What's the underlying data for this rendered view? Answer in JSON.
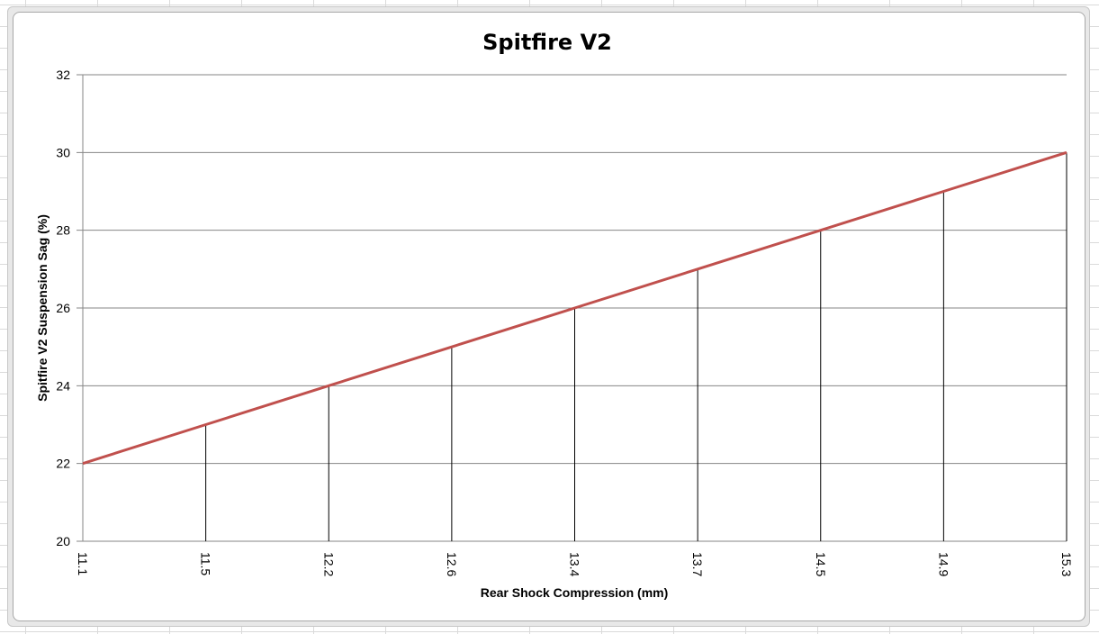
{
  "chart_data": {
    "type": "line",
    "title": "Spitfire V2",
    "xlabel": "Rear Shock Compression (mm)",
    "ylabel": "Spitfire V2 Suspension Sag (%)",
    "categories": [
      "11.1",
      "11.5",
      "12.2",
      "12.6",
      "13.4",
      "13.7",
      "14.5",
      "14.9",
      "15.3"
    ],
    "series": [
      {
        "values": [
          22,
          23,
          24,
          25,
          26,
          27,
          28,
          29,
          30
        ],
        "color": "#c0504d"
      }
    ],
    "drop_lines": true,
    "drop_line_color": "#000000",
    "ylim": [
      20,
      32
    ],
    "yticks": [
      20,
      22,
      24,
      26,
      28,
      30,
      32
    ],
    "grid": "horizontal",
    "legend": "none"
  }
}
